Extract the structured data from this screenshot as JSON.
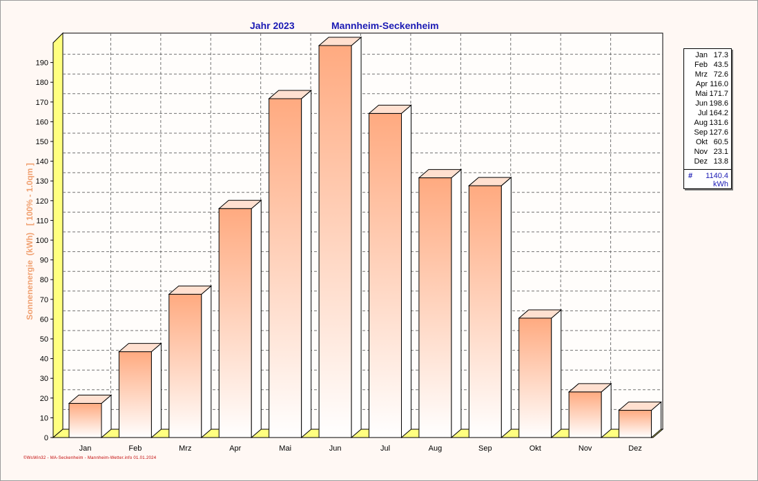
{
  "title": {
    "year": "Jahr  2023",
    "location": "Mannheim-Seckenheim"
  },
  "legend": {
    "rows": [
      {
        "month": "Jan",
        "value": "17.3"
      },
      {
        "month": "Feb",
        "value": "43.5"
      },
      {
        "month": "Mrz",
        "value": "72.6"
      },
      {
        "month": "Apr",
        "value": "116.0"
      },
      {
        "month": "Mai",
        "value": "171.7"
      },
      {
        "month": "Jun",
        "value": "198.6"
      },
      {
        "month": "Jul",
        "value": "164.2"
      },
      {
        "month": "Aug",
        "value": "131.6"
      },
      {
        "month": "Sep",
        "value": "127.6"
      },
      {
        "month": "Okt",
        "value": "60.5"
      },
      {
        "month": "Nov",
        "value": "23.1"
      },
      {
        "month": "Dez",
        "value": "13.8"
      }
    ],
    "total_symbol": "#",
    "total": "1140.4",
    "unit": "kWh"
  },
  "footer": "©WsWin32 - MA-Seckenheim - Mannheim-Wetter.info 01.01.2024",
  "chart_data": {
    "type": "bar",
    "title": "Jahr  2023",
    "subtitle": "Mannheim-Seckenheim",
    "categories": [
      "Jan",
      "Feb",
      "Mrz",
      "Apr",
      "Mai",
      "Jun",
      "Jul",
      "Aug",
      "Sep",
      "Okt",
      "Nov",
      "Dez"
    ],
    "values": [
      17.3,
      43.5,
      72.6,
      116.0,
      171.7,
      198.6,
      164.2,
      131.6,
      127.6,
      60.5,
      23.1,
      13.8
    ],
    "ylabel": "Sonnenenergie  (kWh)   [ 100% - 1.0qm ]",
    "xlabel": "",
    "ylim": [
      0,
      200
    ],
    "yticks": [
      0,
      10,
      20,
      30,
      40,
      50,
      60,
      70,
      80,
      90,
      100,
      110,
      120,
      130,
      140,
      150,
      160,
      170,
      180,
      190
    ],
    "grid": true,
    "legend": "right",
    "colors": {
      "bar_top": "#ffaa80",
      "bar_bottom": "#ffffff",
      "bar_side": "#ffffff",
      "bar_cap": "#ffe0d0",
      "wall": "#ffff80",
      "ylabel": "#f0a070"
    }
  }
}
